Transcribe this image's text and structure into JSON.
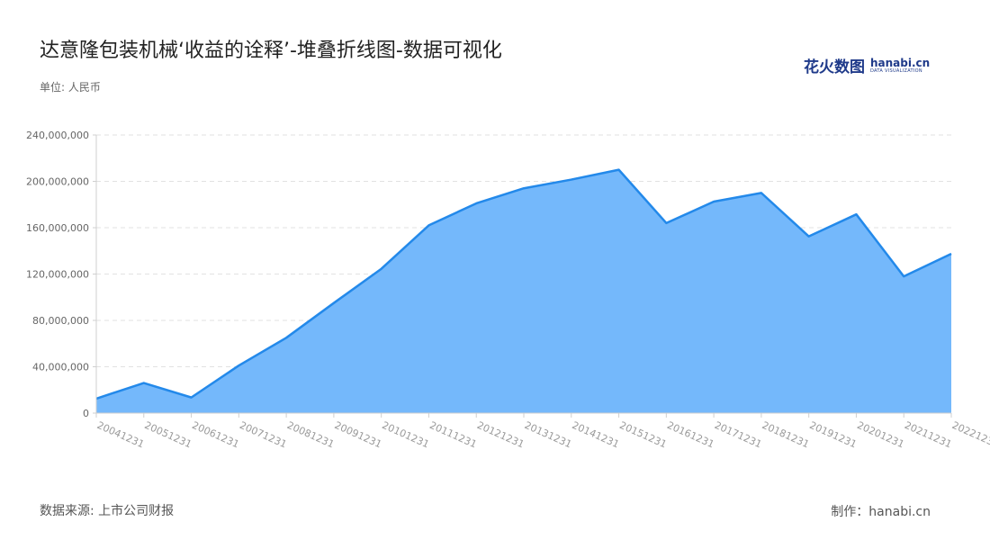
{
  "title": "达意隆包装机械‘收益的诠释’-堆叠折线图-数据可视化",
  "unit_label": "单位: 人民币",
  "source_label": "数据来源: 上市公司财报",
  "maker_label": "制作：hanabi.cn",
  "logo": {
    "cn": "花火数图",
    "en": "hanabi.cn",
    "sub": "DATA VISUALIZATION"
  },
  "colors": {
    "area": "#74b8fb",
    "line": "#2389ea",
    "grid": "#e2e2e2",
    "axis": "#cfcfcf"
  },
  "chart_data": {
    "type": "area",
    "title": "达意隆包装机械‘收益的诠释’-堆叠折线图-数据可视化",
    "ylim": [
      0,
      240000000
    ],
    "yticks": [
      0,
      40000000,
      80000000,
      120000000,
      160000000,
      200000000,
      240000000
    ],
    "ytick_labels": [
      "0",
      "40,000,000",
      "80,000,000",
      "120,000,000",
      "160,000,000",
      "200,000,000",
      "240,000,000"
    ],
    "grid": true,
    "categories": [
      "20041231",
      "20051231",
      "20061231",
      "20071231",
      "20081231",
      "20091231",
      "20101231",
      "20111231",
      "20121231",
      "20131231",
      "20141231",
      "20151231",
      "20161231",
      "20171231",
      "20181231",
      "20191231",
      "20201231",
      "20211231",
      "20221231"
    ],
    "series": [
      {
        "values": [
          12500000,
          26000000,
          13500000,
          41000000,
          65000000,
          95000000,
          124500000,
          162000000,
          181000000,
          194000000,
          201500000,
          210000000,
          164000000,
          182500000,
          190000000,
          152500000,
          171500000,
          118000000,
          137500000
        ]
      }
    ]
  }
}
